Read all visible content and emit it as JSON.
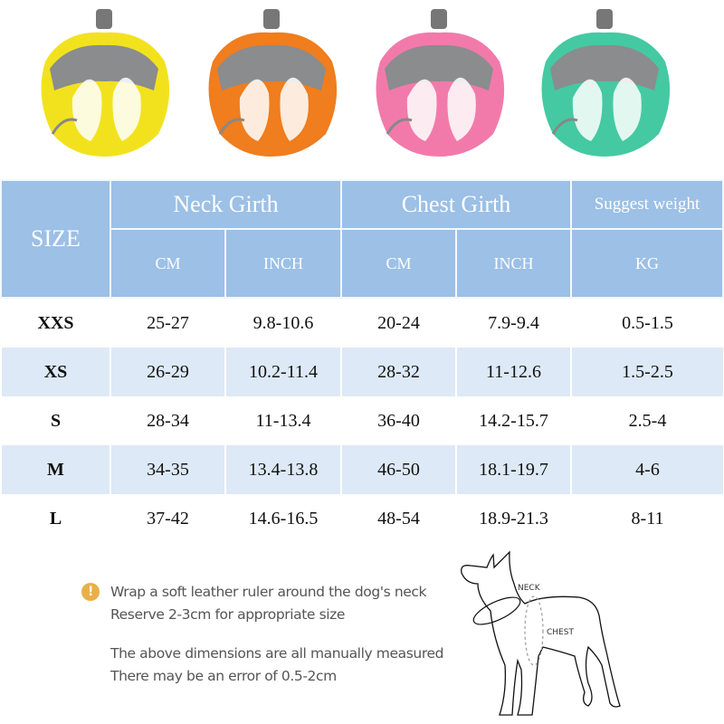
{
  "harnesses": [
    {
      "color": "yellow",
      "hex": "#f2e21e"
    },
    {
      "color": "orange",
      "hex": "#f07d1e"
    },
    {
      "color": "pink",
      "hex": "#f27aaa"
    },
    {
      "color": "mint",
      "hex": "#45c9a2"
    }
  ],
  "table": {
    "size_header": "SIZE",
    "groups": [
      "Neck Girth",
      "Chest Girth",
      "Suggest weight"
    ],
    "units": [
      "CM",
      "INCH",
      "CM",
      "INCH",
      "KG"
    ],
    "header_color": "#9cc0e6",
    "rows": [
      {
        "size": "XXS",
        "neck_cm": "25-27",
        "neck_inch": "9.8-10.6",
        "chest_cm": "20-24",
        "chest_inch": "7.9-9.4",
        "kg": "0.5-1.5"
      },
      {
        "size": "XS",
        "neck_cm": "26-29",
        "neck_inch": "10.2-11.4",
        "chest_cm": "28-32",
        "chest_inch": "11-12.6",
        "kg": "1.5-2.5"
      },
      {
        "size": "S",
        "neck_cm": "28-34",
        "neck_inch": "11-13.4",
        "chest_cm": "36-40",
        "chest_inch": "14.2-15.7",
        "kg": "2.5-4"
      },
      {
        "size": "M",
        "neck_cm": "34-35",
        "neck_inch": "13.4-13.8",
        "chest_cm": "46-50",
        "chest_inch": "18.1-19.7",
        "kg": "4-6"
      },
      {
        "size": "L",
        "neck_cm": "37-42",
        "neck_inch": "14.6-16.5",
        "chest_cm": "48-54",
        "chest_inch": "18.9-21.3",
        "kg": "8-11"
      }
    ]
  },
  "notes": {
    "icon": "exclamation-icon",
    "line1": "Wrap a soft leather ruler around the dog's neck",
    "line2": "Reserve 2-3cm for appropriate size",
    "line3": "The above dimensions are all manually measured",
    "line4": "There may be an error of 0.5-2cm"
  },
  "diagram": {
    "neck_label": "NECK",
    "chest_label": "CHEST"
  }
}
